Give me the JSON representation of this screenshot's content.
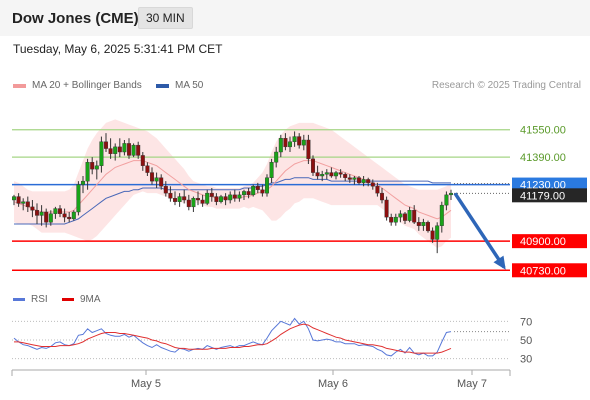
{
  "header": {
    "symbol": "Dow Jones (CME)",
    "timeframe": "30 MIN"
  },
  "timestamp": "Tuesday, May 6, 2025 5:31:41 PM CET",
  "legend": {
    "ma20_bb": "MA 20 + Bollinger Bands",
    "ma50": "MA 50",
    "credit": "Research © 2025 Trading Central"
  },
  "rsi_legend": {
    "rsi": "RSI",
    "ma9": "9MA"
  },
  "colors": {
    "candle_up": "#19a319",
    "candle_down": "#8c1010",
    "bollinger_fill": "#fde2e2",
    "ma20": "#f2a0a0",
    "ma50": "#4a68b8",
    "resistance": "#a5d585",
    "support": "#ff0000",
    "pivot": "#2a6cd6",
    "arrow": "#2e66b8",
    "rsi": "#5878d8",
    "rsi_ma": "#e03030"
  },
  "chart_data": [
    {
      "type": "candlestick",
      "title": "Dow Jones (CME) 30 MIN",
      "x_labels": [
        "May 5",
        "May 6",
        "May 7"
      ],
      "ylim": [
        40650,
        41770
      ],
      "levels": [
        {
          "name": "resistance",
          "value": 41550,
          "label": "41550.00"
        },
        {
          "name": "resistance",
          "value": 41390,
          "label": "41390.00"
        },
        {
          "name": "pivot",
          "value": 41230,
          "label": "41230.00"
        },
        {
          "name": "last",
          "value": 41179,
          "label": "41179.00"
        },
        {
          "name": "support",
          "value": 40900,
          "label": "40900.00"
        },
        {
          "name": "support",
          "value": 40730,
          "label": "40730.00"
        }
      ],
      "projection": {
        "from": 41179,
        "to": 40730
      },
      "ohlc": [
        [
          41140,
          41170,
          41110,
          41160
        ],
        [
          41160,
          41180,
          41100,
          41120
        ],
        [
          41120,
          41150,
          41080,
          41130
        ],
        [
          41130,
          41160,
          41070,
          41100
        ],
        [
          41100,
          41140,
          41040,
          41080
        ],
        [
          41080,
          41120,
          41000,
          41050
        ],
        [
          41050,
          41110,
          40990,
          41070
        ],
        [
          41070,
          41090,
          40980,
          41010
        ],
        [
          41010,
          41080,
          40990,
          41060
        ],
        [
          41060,
          41100,
          41030,
          41090
        ],
        [
          41090,
          41110,
          41040,
          41060
        ],
        [
          41060,
          41090,
          41010,
          41040
        ],
        [
          41040,
          41070,
          41010,
          41030
        ],
        [
          41030,
          41080,
          41020,
          41070
        ],
        [
          41070,
          41250,
          41050,
          41230
        ],
        [
          41230,
          41280,
          41180,
          41250
        ],
        [
          41250,
          41380,
          41200,
          41360
        ],
        [
          41360,
          41390,
          41290,
          41320
        ],
        [
          41320,
          41370,
          41260,
          41340
        ],
        [
          41340,
          41510,
          41300,
          41480
        ],
        [
          41480,
          41530,
          41420,
          41440
        ],
        [
          41440,
          41500,
          41380,
          41410
        ],
        [
          41410,
          41470,
          41370,
          41450
        ],
        [
          41450,
          41500,
          41390,
          41420
        ],
        [
          41420,
          41490,
          41400,
          41470
        ],
        [
          41470,
          41500,
          41380,
          41400
        ],
        [
          41400,
          41470,
          41390,
          41460
        ],
        [
          41460,
          41480,
          41380,
          41400
        ],
        [
          41400,
          41420,
          41310,
          41340
        ],
        [
          41340,
          41360,
          41280,
          41300
        ],
        [
          41300,
          41330,
          41230,
          41250
        ],
        [
          41250,
          41300,
          41210,
          41270
        ],
        [
          41270,
          41290,
          41200,
          41220
        ],
        [
          41220,
          41250,
          41160,
          41180
        ],
        [
          41180,
          41220,
          41130,
          41150
        ],
        [
          41150,
          41190,
          41110,
          41130
        ],
        [
          41130,
          41180,
          41100,
          41160
        ],
        [
          41160,
          41200,
          41120,
          41140
        ],
        [
          41140,
          41170,
          41080,
          41100
        ],
        [
          41100,
          41160,
          41070,
          41150
        ],
        [
          41150,
          41190,
          41110,
          41140
        ],
        [
          41140,
          41170,
          41100,
          41120
        ],
        [
          41120,
          41200,
          41110,
          41180
        ],
        [
          41180,
          41210,
          41130,
          41160
        ],
        [
          41160,
          41180,
          41110,
          41130
        ],
        [
          41130,
          41170,
          41120,
          41160
        ],
        [
          41160,
          41180,
          41110,
          41140
        ],
        [
          41140,
          41190,
          41120,
          41170
        ],
        [
          41170,
          41200,
          41130,
          41150
        ],
        [
          41150,
          41190,
          41130,
          41170
        ],
        [
          41170,
          41200,
          41140,
          41190
        ],
        [
          41190,
          41210,
          41150,
          41170
        ],
        [
          41170,
          41230,
          41160,
          41220
        ],
        [
          41220,
          41240,
          41180,
          41200
        ],
        [
          41200,
          41230,
          41160,
          41180
        ],
        [
          41180,
          41290,
          41160,
          41270
        ],
        [
          41270,
          41380,
          41240,
          41360
        ],
        [
          41360,
          41450,
          41330,
          41420
        ],
        [
          41420,
          41520,
          41390,
          41500
        ],
        [
          41500,
          41530,
          41430,
          41450
        ],
        [
          41450,
          41510,
          41420,
          41480
        ],
        [
          41480,
          41540,
          41450,
          41510
        ],
        [
          41510,
          41530,
          41440,
          41460
        ],
        [
          41460,
          41520,
          41430,
          41490
        ],
        [
          41490,
          41520,
          41350,
          41380
        ],
        [
          41380,
          41400,
          41280,
          41300
        ],
        [
          41300,
          41340,
          41260,
          41280
        ],
        [
          41280,
          41310,
          41250,
          41290
        ],
        [
          41290,
          41320,
          41260,
          41300
        ],
        [
          41300,
          41330,
          41270,
          41280
        ],
        [
          41280,
          41310,
          41260,
          41300
        ],
        [
          41300,
          41320,
          41270,
          41290
        ],
        [
          41290,
          41300,
          41250,
          41270
        ],
        [
          41270,
          41290,
          41240,
          41260
        ],
        [
          41260,
          41280,
          41230,
          41270
        ],
        [
          41270,
          41280,
          41230,
          41240
        ],
        [
          41240,
          41280,
          41220,
          41260
        ],
        [
          41260,
          41270,
          41220,
          41240
        ],
        [
          41240,
          41260,
          41200,
          41220
        ],
        [
          41220,
          41240,
          41160,
          41180
        ],
        [
          41180,
          41210,
          41120,
          41140
        ],
        [
          41140,
          41160,
          41020,
          41040
        ],
        [
          41040,
          41060,
          40990,
          41010
        ],
        [
          41010,
          41060,
          40990,
          41040
        ],
        [
          41040,
          41080,
          41010,
          41060
        ],
        [
          41060,
          41070,
          41000,
          41020
        ],
        [
          41020,
          41100,
          41010,
          41080
        ],
        [
          41080,
          41110,
          41000,
          41010
        ],
        [
          41010,
          41040,
          40960,
          40990
        ],
        [
          40990,
          41030,
          40960,
          41010
        ],
        [
          41010,
          41020,
          40950,
          40960
        ],
        [
          40960,
          40980,
          40890,
          40910
        ],
        [
          40910,
          41010,
          40830,
          40990
        ],
        [
          40990,
          41130,
          40950,
          41110
        ],
        [
          41110,
          41190,
          41080,
          41170
        ],
        [
          41170,
          41200,
          41140,
          41180
        ]
      ],
      "ma20": [
        41130,
        41120,
        41110,
        41100,
        41090,
        41080,
        41070,
        41070,
        41070,
        41070,
        41070,
        41070,
        41070,
        41080,
        41110,
        41140,
        41170,
        41200,
        41230,
        41260,
        41290,
        41310,
        41330,
        41340,
        41350,
        41360,
        41370,
        41370,
        41370,
        41360,
        41350,
        41340,
        41320,
        41300,
        41280,
        41260,
        41240,
        41220,
        41200,
        41190,
        41180,
        41170,
        41160,
        41160,
        41150,
        41150,
        41150,
        41150,
        41150,
        41150,
        41160,
        41160,
        41170,
        41180,
        41190,
        41200,
        41220,
        41250,
        41280,
        41310,
        41330,
        41350,
        41360,
        41370,
        41370,
        41370,
        41360,
        41350,
        41340,
        41330,
        41320,
        41310,
        41300,
        41290,
        41280,
        41270,
        41260,
        41250,
        41240,
        41230,
        41210,
        41190,
        41170,
        41150,
        41130,
        41110,
        41100,
        41090,
        41070,
        41060,
        41050,
        41040,
        41030,
        41040,
        41060,
        41080
      ],
      "ma50": [
        41000,
        41000,
        41000,
        41000,
        41000,
        41000,
        41000,
        41000,
        41000,
        41000,
        41000,
        41000,
        41010,
        41020,
        41030,
        41050,
        41070,
        41090,
        41110,
        41130,
        41150,
        41160,
        41170,
        41180,
        41190,
        41190,
        41200,
        41200,
        41210,
        41210,
        41210,
        41210,
        41210,
        41200,
        41200,
        41200,
        41200,
        41200,
        41200,
        41200,
        41200,
        41200,
        41200,
        41200,
        41200,
        41200,
        41200,
        41200,
        41200,
        41200,
        41210,
        41210,
        41210,
        41220,
        41220,
        41230,
        41240,
        41240,
        41250,
        41260,
        41260,
        41270,
        41270,
        41270,
        41270,
        41260,
        41260,
        41260,
        41260,
        41250,
        41250,
        41250,
        41250,
        41250,
        41250,
        41250,
        41250,
        41250,
        41250,
        41250,
        41250,
        41250,
        41250,
        41250,
        41250,
        41250,
        41250,
        41250,
        41250,
        41250,
        41250,
        41240,
        41240,
        41240,
        41240,
        41240
      ],
      "bb_upper": [
        41250,
        41240,
        41220,
        41200,
        41190,
        41190,
        41190,
        41190,
        41190,
        41190,
        41190,
        41190,
        41200,
        41230,
        41300,
        41370,
        41440,
        41490,
        41530,
        41560,
        41590,
        41600,
        41610,
        41600,
        41590,
        41580,
        41570,
        41560,
        41550,
        41540,
        41520,
        41500,
        41470,
        41440,
        41410,
        41380,
        41350,
        41320,
        41280,
        41250,
        41240,
        41230,
        41220,
        41220,
        41210,
        41210,
        41210,
        41210,
        41210,
        41210,
        41220,
        41230,
        41240,
        41270,
        41300,
        41350,
        41420,
        41480,
        41520,
        41550,
        41570,
        41580,
        41590,
        41590,
        41590,
        41590,
        41580,
        41570,
        41560,
        41550,
        41530,
        41510,
        41490,
        41470,
        41450,
        41430,
        41410,
        41390,
        41370,
        41350,
        41330,
        41310,
        41290,
        41270,
        41250,
        41230,
        41220,
        41210,
        41200,
        41200,
        41200,
        41200,
        41200,
        41210,
        41220,
        41240
      ],
      "bb_lower": [
        41010,
        41000,
        41000,
        41000,
        40990,
        40970,
        40950,
        40950,
        40950,
        40950,
        40950,
        40950,
        40940,
        40930,
        40920,
        40910,
        40900,
        40910,
        40930,
        40960,
        40990,
        41020,
        41050,
        41080,
        41110,
        41140,
        41170,
        41180,
        41190,
        41180,
        41180,
        41180,
        41170,
        41160,
        41150,
        41140,
        41130,
        41120,
        41120,
        41130,
        41120,
        41110,
        41100,
        41100,
        41090,
        41090,
        41090,
        41090,
        41090,
        41090,
        41100,
        41090,
        41100,
        41090,
        41080,
        41050,
        41020,
        41020,
        41040,
        41070,
        41090,
        41120,
        41130,
        41150,
        41150,
        41150,
        41140,
        41130,
        41120,
        41110,
        41110,
        41110,
        41110,
        41110,
        41110,
        41110,
        41110,
        41110,
        41110,
        41110,
        41090,
        41070,
        41050,
        41030,
        41010,
        40990,
        40980,
        40970,
        40940,
        40920,
        40900,
        40880,
        40860,
        40870,
        40900,
        40920
      ]
    },
    {
      "type": "line",
      "title": "RSI",
      "ylim": [
        20,
        80
      ],
      "yticks": [
        "70",
        "50",
        "30"
      ],
      "reference_lines": [
        70,
        50,
        30
      ],
      "series": [
        {
          "name": "RSI",
          "values": [
            52,
            48,
            45,
            44,
            42,
            40,
            42,
            41,
            43,
            47,
            48,
            45,
            44,
            46,
            55,
            56,
            62,
            58,
            60,
            62,
            57,
            55,
            54,
            54,
            56,
            53,
            55,
            51,
            47,
            44,
            42,
            45,
            42,
            40,
            38,
            37,
            41,
            40,
            38,
            40,
            41,
            40,
            44,
            42,
            40,
            42,
            43,
            44,
            42,
            44,
            44,
            46,
            48,
            46,
            45,
            52,
            60,
            65,
            70,
            68,
            66,
            73,
            67,
            70,
            62,
            50,
            49,
            50,
            51,
            50,
            48,
            48,
            46,
            46,
            46,
            44,
            45,
            44,
            43,
            40,
            38,
            34,
            33,
            37,
            40,
            36,
            42,
            36,
            34,
            36,
            33,
            33,
            37,
            48,
            58,
            59
          ]
        },
        {
          "name": "9MA",
          "values": [
            48,
            48,
            47,
            46,
            45,
            44,
            43,
            43,
            43,
            43,
            44,
            44,
            44,
            45,
            46,
            48,
            51,
            53,
            55,
            57,
            58,
            58,
            58,
            57,
            57,
            56,
            55,
            54,
            53,
            52,
            50,
            49,
            47,
            46,
            44,
            42,
            41,
            41,
            40,
            40,
            40,
            40,
            40,
            41,
            41,
            41,
            41,
            42,
            42,
            42,
            43,
            43,
            44,
            45,
            45,
            46,
            49,
            52,
            56,
            59,
            62,
            64,
            66,
            67,
            66,
            63,
            61,
            59,
            57,
            55,
            53,
            52,
            50,
            49,
            48,
            47,
            46,
            45,
            45,
            44,
            43,
            41,
            40,
            39,
            38,
            37,
            37,
            36,
            36,
            36,
            36,
            36,
            36,
            37,
            39,
            41
          ]
        }
      ]
    }
  ]
}
